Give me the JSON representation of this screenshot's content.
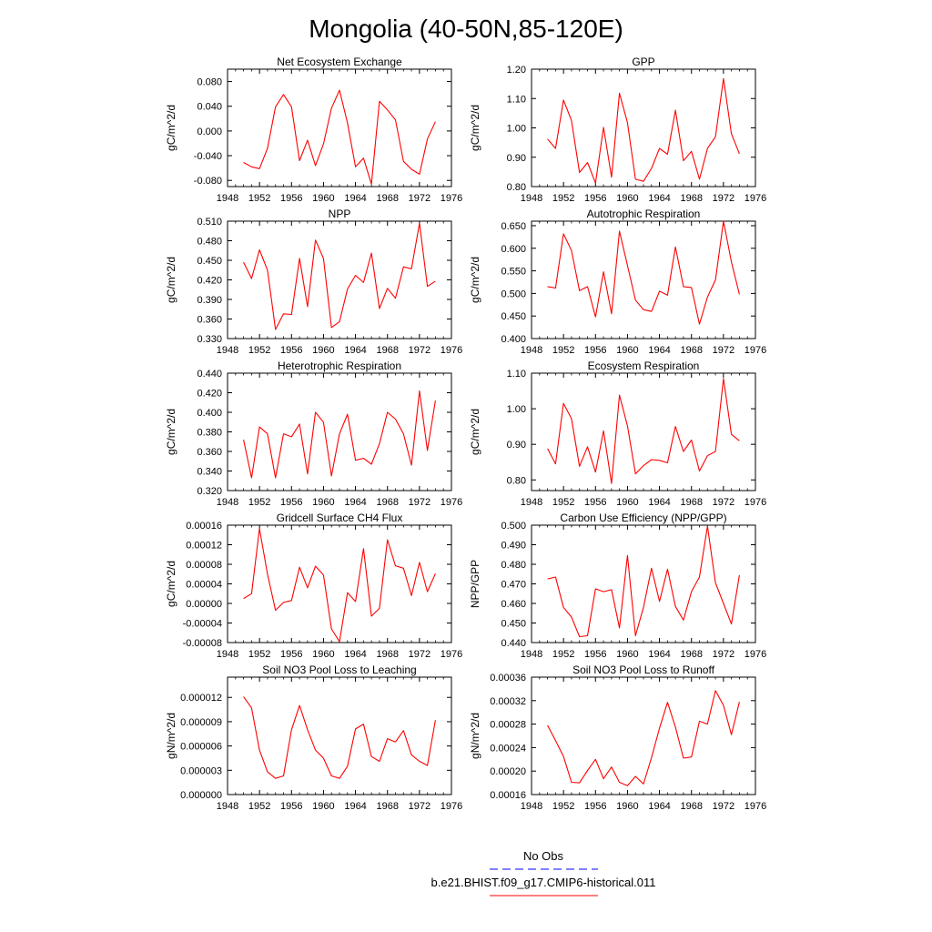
{
  "figure": {
    "title": "Mongolia (40-50N,85-120E)",
    "legend": [
      {
        "label": "No Obs",
        "color": "#0000ff",
        "dash": "dashed"
      },
      {
        "label": "b.e21.BHIST.f09_g17.CMIP6-historical.011",
        "color": "#ff0000",
        "dash": "solid"
      }
    ]
  },
  "chart_data": [
    {
      "type": "line",
      "title": "Net Ecosystem Exchange",
      "ylabel": "gC/m^2/d",
      "xlim": [
        1948,
        1976
      ],
      "xticks": [
        1948,
        1952,
        1956,
        1960,
        1964,
        1968,
        1972,
        1976
      ],
      "ylim": [
        -0.09,
        0.1
      ],
      "yticks": [
        -0.08,
        -0.04,
        0.0,
        0.04,
        0.08
      ],
      "ydecimals": 3,
      "series": [
        {
          "color": "#ff0000",
          "x": [
            1950,
            1951,
            1952,
            1953,
            1954,
            1955,
            1956,
            1957,
            1958,
            1959,
            1960,
            1961,
            1962,
            1963,
            1964,
            1965,
            1966,
            1967,
            1968,
            1969,
            1970,
            1971,
            1972,
            1973,
            1974
          ],
          "y": [
            -0.051,
            -0.058,
            -0.061,
            -0.028,
            0.039,
            0.059,
            0.039,
            -0.048,
            -0.015,
            -0.056,
            -0.021,
            0.037,
            0.066,
            0.013,
            -0.058,
            -0.044,
            -0.086,
            0.048,
            0.034,
            0.018,
            -0.049,
            -0.062,
            -0.07,
            -0.013,
            0.015
          ]
        }
      ]
    },
    {
      "type": "line",
      "title": "GPP",
      "ylabel": "gC/m^2/d",
      "xlim": [
        1948,
        1976
      ],
      "xticks": [
        1948,
        1952,
        1956,
        1960,
        1964,
        1968,
        1972,
        1976
      ],
      "ylim": [
        0.8,
        1.2
      ],
      "yticks": [
        0.8,
        0.9,
        1.0,
        1.1,
        1.2
      ],
      "ydecimals": 2,
      "series": [
        {
          "color": "#ff0000",
          "x": [
            1950,
            1951,
            1952,
            1953,
            1954,
            1955,
            1956,
            1957,
            1958,
            1959,
            1960,
            1961,
            1962,
            1963,
            1964,
            1965,
            1966,
            1967,
            1968,
            1969,
            1970,
            1971,
            1972,
            1973,
            1974
          ],
          "y": [
            0.962,
            0.93,
            1.095,
            1.025,
            0.848,
            0.882,
            0.812,
            1.002,
            0.832,
            1.118,
            1.018,
            0.825,
            0.818,
            0.862,
            0.93,
            0.91,
            1.06,
            0.888,
            0.92,
            0.825,
            0.93,
            0.97,
            1.168,
            0.98,
            0.912
          ]
        }
      ]
    },
    {
      "type": "line",
      "title": "NPP",
      "ylabel": "gC/m^2/d",
      "xlim": [
        1948,
        1976
      ],
      "xticks": [
        1948,
        1952,
        1956,
        1960,
        1964,
        1968,
        1972,
        1976
      ],
      "ylim": [
        0.33,
        0.51
      ],
      "yticks": [
        0.33,
        0.36,
        0.39,
        0.42,
        0.45,
        0.48,
        0.51
      ],
      "ydecimals": 3,
      "series": [
        {
          "color": "#ff0000",
          "x": [
            1950,
            1951,
            1952,
            1953,
            1954,
            1955,
            1956,
            1957,
            1958,
            1959,
            1960,
            1961,
            1962,
            1963,
            1964,
            1965,
            1966,
            1967,
            1968,
            1969,
            1970,
            1971,
            1972,
            1973,
            1974
          ],
          "y": [
            0.447,
            0.422,
            0.466,
            0.435,
            0.344,
            0.368,
            0.367,
            0.453,
            0.379,
            0.481,
            0.453,
            0.347,
            0.356,
            0.406,
            0.427,
            0.416,
            0.461,
            0.376,
            0.407,
            0.392,
            0.44,
            0.437,
            0.507,
            0.41,
            0.418
          ]
        }
      ]
    },
    {
      "type": "line",
      "title": "Autotrophic Respiration",
      "ylabel": "gC/m^2/d",
      "xlim": [
        1948,
        1976
      ],
      "xticks": [
        1948,
        1952,
        1956,
        1960,
        1964,
        1968,
        1972,
        1976
      ],
      "ylim": [
        0.4,
        0.66
      ],
      "yticks": [
        0.4,
        0.45,
        0.5,
        0.55,
        0.6,
        0.65
      ],
      "ydecimals": 3,
      "series": [
        {
          "color": "#ff0000",
          "x": [
            1950,
            1951,
            1952,
            1953,
            1954,
            1955,
            1956,
            1957,
            1958,
            1959,
            1960,
            1961,
            1962,
            1963,
            1964,
            1965,
            1966,
            1967,
            1968,
            1969,
            1970,
            1971,
            1972,
            1973,
            1974
          ],
          "y": [
            0.515,
            0.512,
            0.632,
            0.595,
            0.506,
            0.515,
            0.448,
            0.548,
            0.455,
            0.638,
            0.562,
            0.485,
            0.464,
            0.46,
            0.505,
            0.496,
            0.603,
            0.515,
            0.513,
            0.432,
            0.492,
            0.53,
            0.66,
            0.57,
            0.498
          ]
        }
      ]
    },
    {
      "type": "line",
      "title": "Heterotrophic Respiration",
      "ylabel": "gC/m^2/d",
      "xlim": [
        1948,
        1976
      ],
      "xticks": [
        1948,
        1952,
        1956,
        1960,
        1964,
        1968,
        1972,
        1976
      ],
      "ylim": [
        0.32,
        0.44
      ],
      "yticks": [
        0.32,
        0.34,
        0.36,
        0.38,
        0.4,
        0.42,
        0.44
      ],
      "ydecimals": 3,
      "series": [
        {
          "color": "#ff0000",
          "x": [
            1950,
            1951,
            1952,
            1953,
            1954,
            1955,
            1956,
            1957,
            1958,
            1959,
            1960,
            1961,
            1962,
            1963,
            1964,
            1965,
            1966,
            1967,
            1968,
            1969,
            1970,
            1971,
            1972,
            1973,
            1974
          ],
          "y": [
            0.372,
            0.333,
            0.385,
            0.378,
            0.333,
            0.378,
            0.375,
            0.388,
            0.337,
            0.4,
            0.39,
            0.335,
            0.378,
            0.398,
            0.351,
            0.353,
            0.347,
            0.368,
            0.4,
            0.393,
            0.378,
            0.346,
            0.422,
            0.361,
            0.412
          ]
        }
      ]
    },
    {
      "type": "line",
      "title": "Ecosystem Respiration",
      "ylabel": "gC/m^2/d",
      "xlim": [
        1948,
        1976
      ],
      "xticks": [
        1948,
        1952,
        1956,
        1960,
        1964,
        1968,
        1972,
        1976
      ],
      "ylim": [
        0.77,
        1.1
      ],
      "yticks": [
        0.8,
        0.9,
        1.0,
        1.1
      ],
      "ydecimals": 2,
      "series": [
        {
          "color": "#ff0000",
          "x": [
            1950,
            1951,
            1952,
            1953,
            1954,
            1955,
            1956,
            1957,
            1958,
            1959,
            1960,
            1961,
            1962,
            1963,
            1964,
            1965,
            1966,
            1967,
            1968,
            1969,
            1970,
            1971,
            1972,
            1973,
            1974
          ],
          "y": [
            0.888,
            0.845,
            1.015,
            0.972,
            0.838,
            0.893,
            0.822,
            0.938,
            0.79,
            1.038,
            0.952,
            0.817,
            0.84,
            0.857,
            0.855,
            0.848,
            0.95,
            0.88,
            0.912,
            0.825,
            0.868,
            0.88,
            1.085,
            0.928,
            0.91
          ]
        }
      ]
    },
    {
      "type": "line",
      "title": "Gridcell Surface CH4 Flux",
      "ylabel": "gC/m^2/d",
      "xlim": [
        1948,
        1976
      ],
      "xticks": [
        1948,
        1952,
        1956,
        1960,
        1964,
        1968,
        1972,
        1976
      ],
      "ylim": [
        -8e-05,
        0.00016
      ],
      "yticks": [
        -8e-05,
        -4e-05,
        0.0,
        4e-05,
        8e-05,
        0.00012,
        0.00016
      ],
      "ydecimals": 5,
      "series": [
        {
          "color": "#ff0000",
          "x": [
            1950,
            1951,
            1952,
            1953,
            1954,
            1955,
            1956,
            1957,
            1958,
            1959,
            1960,
            1961,
            1962,
            1963,
            1964,
            1965,
            1966,
            1967,
            1968,
            1969,
            1970,
            1971,
            1972,
            1973,
            1974
          ],
          "y": [
            1e-05,
            2e-05,
            0.000153,
            6e-05,
            -1.4e-05,
            2e-06,
            6e-06,
            7.4e-05,
            3.2e-05,
            7.6e-05,
            5.8e-05,
            -5.2e-05,
            -7.8e-05,
            2.2e-05,
            4e-06,
            0.000112,
            -2.6e-05,
            -1e-05,
            0.00013,
            7.7e-05,
            7.2e-05,
            1.6e-05,
            8.4e-05,
            2.4e-05,
            6.1e-05
          ]
        }
      ]
    },
    {
      "type": "line",
      "title": "Carbon Use Efficiency (NPP/GPP)",
      "ylabel": "NPP/GPP",
      "xlim": [
        1948,
        1976
      ],
      "xticks": [
        1948,
        1952,
        1956,
        1960,
        1964,
        1968,
        1972,
        1976
      ],
      "ylim": [
        0.44,
        0.5
      ],
      "yticks": [
        0.44,
        0.45,
        0.46,
        0.47,
        0.48,
        0.49,
        0.5
      ],
      "ydecimals": 3,
      "series": [
        {
          "color": "#ff0000",
          "x": [
            1950,
            1951,
            1952,
            1953,
            1954,
            1955,
            1956,
            1957,
            1958,
            1959,
            1960,
            1961,
            1962,
            1963,
            1964,
            1965,
            1966,
            1967,
            1968,
            1969,
            1970,
            1971,
            1972,
            1973,
            1974
          ],
          "y": [
            0.4725,
            0.4735,
            0.458,
            0.453,
            0.443,
            0.4435,
            0.4675,
            0.466,
            0.467,
            0.4475,
            0.4845,
            0.4435,
            0.458,
            0.478,
            0.461,
            0.4775,
            0.4585,
            0.4515,
            0.466,
            0.4735,
            0.4995,
            0.4705,
            0.46,
            0.4495,
            0.4745
          ]
        }
      ]
    },
    {
      "type": "line",
      "title": "Soil NO3 Pool Loss to Leaching",
      "ylabel": "gN/m^2/d",
      "xlim": [
        1948,
        1976
      ],
      "xticks": [
        1948,
        1952,
        1956,
        1960,
        1964,
        1968,
        1972,
        1976
      ],
      "ylim": [
        0.0,
        1.45e-05
      ],
      "yticks": [
        0.0,
        3e-06,
        6e-06,
        9e-06,
        1.2e-05
      ],
      "ydecimals": 6,
      "series": [
        {
          "color": "#ff0000",
          "x": [
            1950,
            1951,
            1952,
            1953,
            1954,
            1955,
            1956,
            1957,
            1958,
            1959,
            1960,
            1961,
            1962,
            1963,
            1964,
            1965,
            1966,
            1967,
            1968,
            1969,
            1970,
            1971,
            1972,
            1973,
            1974
          ],
          "y": [
            1.21e-05,
            1.07e-05,
            5.5e-06,
            2.8e-06,
            2e-06,
            2.3e-06,
            8e-06,
            1.1e-05,
            8e-06,
            5.5e-06,
            4.5e-06,
            2.3e-06,
            2e-06,
            3.5e-06,
            8.1e-06,
            8.7e-06,
            4.7e-06,
            4.1e-06,
            6.9e-06,
            6.5e-06,
            7.9e-06,
            4.9e-06,
            4.1e-06,
            3.6e-06,
            9.2e-06
          ]
        }
      ]
    },
    {
      "type": "line",
      "title": "Soil NO3 Pool Loss to Runoff",
      "ylabel": "gN/m^2/d",
      "xlim": [
        1948,
        1976
      ],
      "xticks": [
        1948,
        1952,
        1956,
        1960,
        1964,
        1968,
        1972,
        1976
      ],
      "ylim": [
        0.00016,
        0.00036
      ],
      "yticks": [
        0.00016,
        0.0002,
        0.00024,
        0.00028,
        0.00032,
        0.00036
      ],
      "ydecimals": 5,
      "series": [
        {
          "color": "#ff0000",
          "x": [
            1950,
            1951,
            1952,
            1953,
            1954,
            1955,
            1956,
            1957,
            1958,
            1959,
            1960,
            1961,
            1962,
            1963,
            1964,
            1965,
            1966,
            1967,
            1968,
            1969,
            1970,
            1971,
            1972,
            1973,
            1974
          ],
          "y": [
            0.000278,
            0.000252,
            0.000225,
            0.000181,
            0.00018,
            0.000201,
            0.00022,
            0.000187,
            0.000207,
            0.000181,
            0.000175,
            0.000191,
            0.000178,
            0.000223,
            0.000273,
            0.000317,
            0.000275,
            0.000222,
            0.000224,
            0.000285,
            0.00028,
            0.000337,
            0.000312,
            0.000262,
            0.000318
          ]
        }
      ]
    }
  ]
}
